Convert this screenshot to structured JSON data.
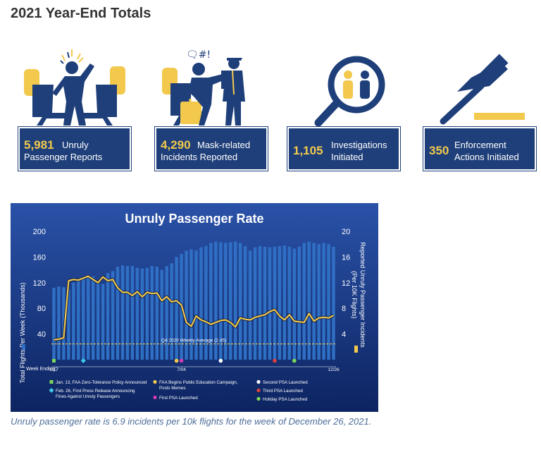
{
  "page": {
    "title": "2021 Year-End Totals"
  },
  "stats": [
    {
      "number": "5,981",
      "label_line1": "Unruly",
      "label_line2": "Passenger Reports",
      "icon": "unruly-passenger-icon"
    },
    {
      "number": "4,290",
      "label_line1": "Mask-related",
      "label_line2": "Incidents Reported",
      "icon": "mask-incident-icon"
    },
    {
      "number": "1,105",
      "label_line1": "Investigations",
      "label_line2": "Initiated",
      "icon": "investigation-magnifier-icon"
    },
    {
      "number": "350",
      "label_line1": "Enforcement",
      "label_line2": "Actions Initiated",
      "icon": "gavel-icon"
    }
  ],
  "chart_data": {
    "type": "bar+line",
    "title": "Unruly Passenger Rate",
    "ylabel_left": "Total Flights Per Week (Thousands)",
    "ylabel_right_line1": "Reported Unruly Passenger Incidents",
    "ylabel_right_line2": "(Per 10K Flights)",
    "xlabel_prefix": "Week Ending:",
    "x_tick_labels": [
      "1/17",
      "7/04",
      "12/26"
    ],
    "ylim_left": [
      0,
      200
    ],
    "yticks_left": [
      "200",
      "160",
      "120",
      "80",
      "40"
    ],
    "ylim_right": [
      0,
      20
    ],
    "yticks_right": [
      "20",
      "16",
      "12",
      "8",
      "4"
    ],
    "grid": false,
    "colors": {
      "background": "#1a3a86",
      "bars": "#2f6fc4",
      "line": "#f2c94c",
      "average_line": "#f2c94c",
      "markers": {
        "green": "#7ed957",
        "cyan": "#3ec8ea",
        "yellow": "#f2c94c",
        "magenta": "#d63ab5",
        "white": "#ffffff",
        "red": "#e0403a"
      }
    },
    "series": [
      {
        "name": "Total Flights Per Week (Thousands)",
        "kind": "bar",
        "values": [
          112,
          114,
          113,
          110,
          120,
          125,
          128,
          132,
          130,
          120,
          118,
          135,
          138,
          145,
          147,
          146,
          146,
          143,
          142,
          143,
          146,
          145,
          140,
          146,
          150,
          160,
          165,
          170,
          172,
          170,
          175,
          177,
          182,
          184,
          183,
          182,
          183,
          184,
          182,
          177,
          170,
          175,
          177,
          176,
          175,
          176,
          177,
          178,
          176,
          173,
          176,
          182,
          184,
          182,
          180,
          182,
          180,
          176
        ]
      },
      {
        "name": "Reported Unruly Passenger Incidents (Per 10K Flights)",
        "kind": "line",
        "values": [
          3.1,
          3.2,
          3.4,
          12.3,
          12.5,
          12.4,
          12.7,
          13.0,
          12.5,
          12.0,
          12.9,
          12.3,
          12.5,
          11.2,
          10.5,
          10.5,
          10.0,
          10.6,
          9.8,
          10.5,
          10.3,
          10.4,
          9.2,
          9.8,
          9.0,
          9.2,
          8.5,
          5.8,
          5.2,
          6.8,
          6.2,
          5.9,
          5.5,
          5.8,
          6.1,
          6.2,
          5.8,
          5.1,
          6.5,
          6.3,
          6.2,
          6.6,
          6.8,
          7.0,
          7.5,
          7.8,
          6.8,
          6.2,
          7.0,
          6.0,
          5.9,
          5.8,
          7.2,
          6.0,
          6.5,
          6.6,
          6.5,
          6.9
        ]
      }
    ],
    "average": {
      "label": "Q4 2020 Weekly Average (2.45)",
      "value": 2.45
    },
    "events": [
      {
        "label": "Jan. 13, FAA Zero-Tolerance Policy Announced",
        "color": "green",
        "shape": "square",
        "week": 0
      },
      {
        "label": "Feb. 26, First Press Release Announcing Fines Against Unruly Passengers",
        "color": "cyan",
        "shape": "diamond",
        "week": 6
      },
      {
        "label": "FAA Begins Public Education Campaign, Posts Memes",
        "color": "yellow",
        "shape": "circle",
        "week": 25
      },
      {
        "label": "First PSA Launched",
        "color": "magenta",
        "shape": "circle",
        "week": 26
      },
      {
        "label": "Second PSA Launched",
        "color": "white",
        "shape": "circle",
        "week": 34
      },
      {
        "label": "Third PSA Launched",
        "color": "red",
        "shape": "circle",
        "week": 45
      },
      {
        "label": "Holiday PSA Launched",
        "color": "green",
        "shape": "circle",
        "week": 49
      }
    ]
  },
  "caption": "Unruly passenger rate is 6.9 incidents per 10k flights for the week of December 26, 2021."
}
